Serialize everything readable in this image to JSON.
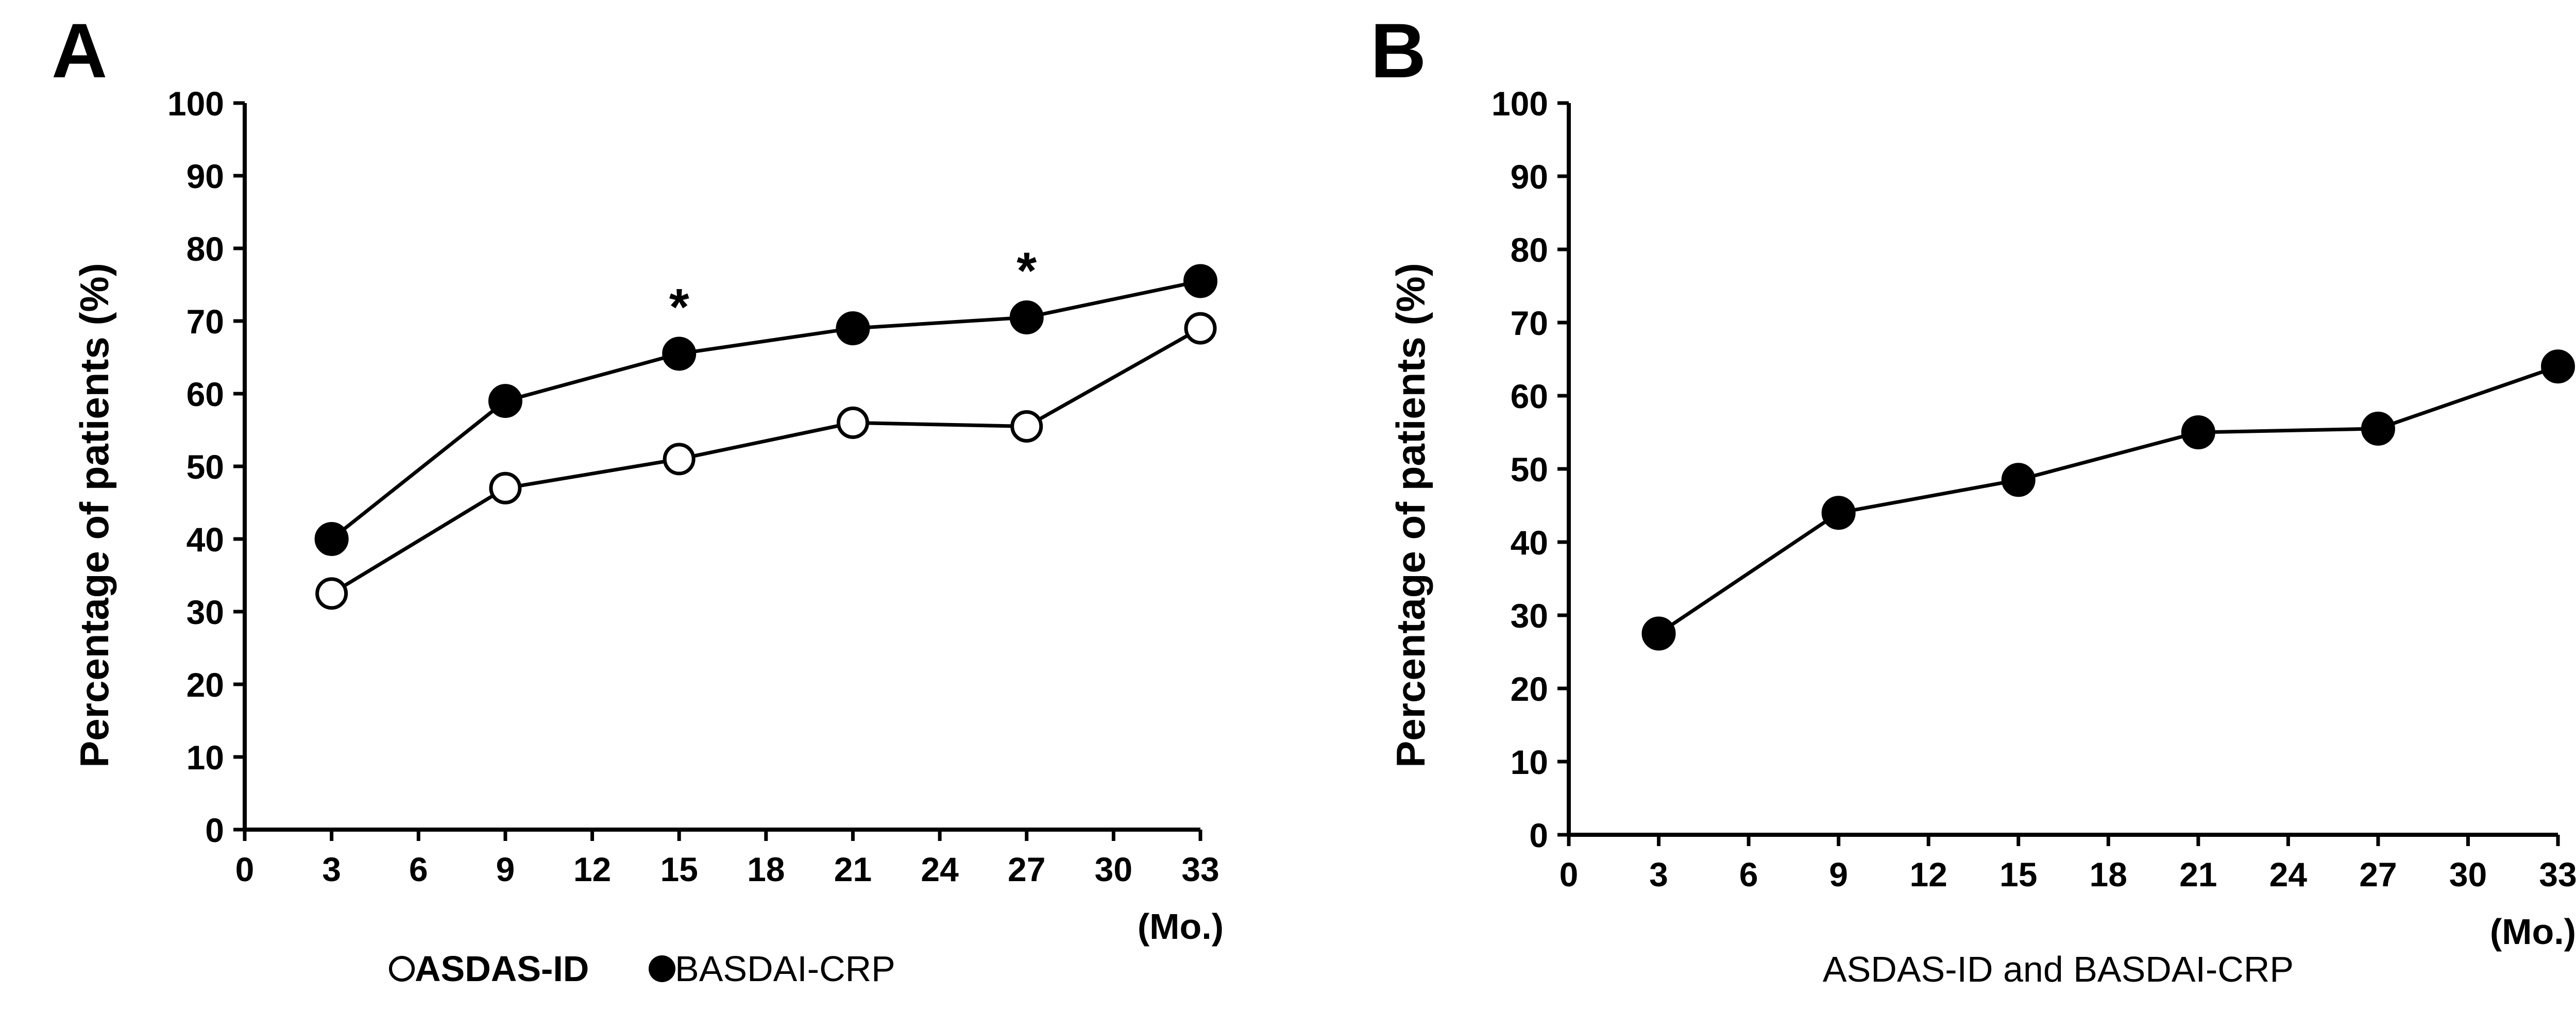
{
  "chart_data": [
    {
      "panel": "A",
      "type": "line",
      "ylabel": "Percentage of patients (%)",
      "xlabel": "(Mo.)",
      "xlim": [
        0,
        33
      ],
      "ylim": [
        0,
        100
      ],
      "xticks": [
        0,
        3,
        6,
        9,
        12,
        15,
        18,
        21,
        24,
        27,
        30,
        33
      ],
      "yticks": [
        0,
        10,
        20,
        30,
        40,
        50,
        60,
        70,
        80,
        90,
        100
      ],
      "series": [
        {
          "name": "ASDAS-ID",
          "marker": "open-circle",
          "legend_weight": "bold",
          "x": [
            3,
            9,
            15,
            21,
            27,
            33
          ],
          "values": [
            32.5,
            47,
            51,
            56,
            55.5,
            69
          ]
        },
        {
          "name": "BASDAI-CRP",
          "marker": "filled-circle",
          "legend_weight": "normal",
          "x": [
            3,
            9,
            15,
            21,
            27,
            33
          ],
          "values": [
            40,
            59,
            65.5,
            69,
            70.5,
            75.5
          ]
        }
      ],
      "annotations": [
        {
          "text": "*",
          "x": 15,
          "y": 72
        },
        {
          "text": "*",
          "x": 27,
          "y": 77
        }
      ],
      "legend_position": "bottom"
    },
    {
      "panel": "B",
      "type": "line",
      "ylabel": "Percentage of patients (%)",
      "xlabel": "(Mo.)",
      "xlim": [
        0,
        33
      ],
      "ylim": [
        0,
        100
      ],
      "xticks": [
        0,
        3,
        6,
        9,
        12,
        15,
        18,
        21,
        24,
        27,
        30,
        33
      ],
      "yticks": [
        0,
        10,
        20,
        30,
        40,
        50,
        60,
        70,
        80,
        90,
        100
      ],
      "series": [
        {
          "name": "ASDAS-ID and BASDAI-CRP",
          "marker": "filled-circle",
          "legend_weight": "normal",
          "x": [
            3,
            9,
            15,
            21,
            27,
            33
          ],
          "values": [
            27.5,
            44,
            48.5,
            55,
            55.5,
            64
          ]
        }
      ],
      "annotations": [],
      "legend_position": "bottom"
    }
  ]
}
